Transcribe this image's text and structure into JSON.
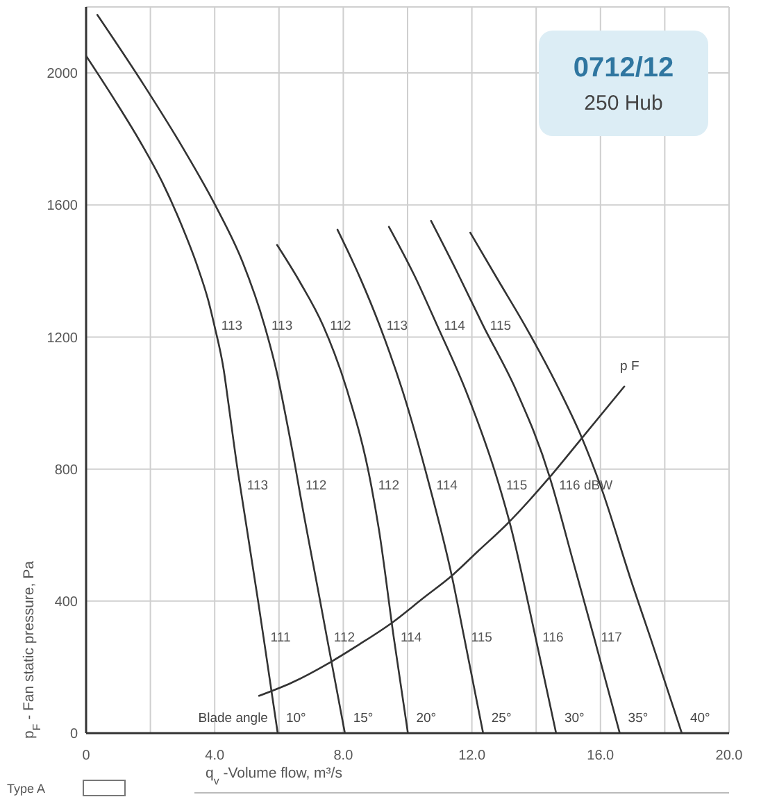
{
  "chart_data": {
    "type": "line",
    "title": "0712/12",
    "subtitle": "250 Hub",
    "xlabel": "q$_{v}$ -Volume flow, m³/s",
    "ylabel": "p$_{F}$ - Fan static pressure, Pa",
    "legend_title": "Blade angle",
    "xlim": [
      0,
      20
    ],
    "ylim": [
      0,
      2200
    ],
    "xticks": [
      0,
      {
        "value": 2,
        "label": null
      },
      {
        "value": 4,
        "label": "4.0"
      },
      {
        "value": 6,
        "label": null
      },
      {
        "value": 8,
        "label": "8.0"
      },
      {
        "value": 10,
        "label": null
      },
      {
        "value": 12,
        "label": "12.0"
      },
      {
        "value": 14,
        "label": null
      },
      {
        "value": 16,
        "label": "16.0"
      },
      {
        "value": 18,
        "label": null
      },
      {
        "value": 20,
        "label": "20.0"
      }
    ],
    "yticks": [
      0,
      400,
      800,
      1200,
      1600,
      2000
    ],
    "grid": true,
    "series": [
      {
        "name": "10°",
        "color": "#333333",
        "x": [
          0,
          0.89,
          1.68,
          2.38,
          2.96,
          3.46,
          3.8,
          3.99,
          4.28,
          4.43,
          4.71,
          4.79,
          5.35,
          5.52,
          5.96
        ],
        "values": [
          2052,
          1918,
          1792,
          1667,
          1541,
          1415,
          1311,
          1235,
          1101,
          997,
          800,
          750,
          400,
          290,
          0
        ]
      },
      {
        "name": "15°",
        "color": "#333333",
        "x": [
          0.35,
          1.82,
          2.98,
          4.03,
          4.86,
          5.55,
          5.93,
          6.22,
          6.52,
          6.61,
          7.28,
          7.49,
          8.05
        ],
        "values": [
          2176,
          1960,
          1778,
          1597,
          1429,
          1235,
          1094,
          955,
          800,
          750,
          400,
          290,
          0
        ]
      },
      {
        "name": "20°",
        "color": "#333333",
        "x": [
          5.94,
          6.66,
          7.37,
          8.12,
          8.87,
          9.11,
          9.57,
          10.01
        ],
        "values": [
          1479,
          1365,
          1235,
          1038,
          750,
          616,
          290,
          0
        ]
      },
      {
        "name": "25°",
        "color": "#333333",
        "x": [
          7.82,
          8.52,
          9.13,
          9.84,
          10.68,
          11.39,
          11.76,
          12.35
        ],
        "values": [
          1525,
          1380,
          1235,
          1038,
          750,
          470,
          290,
          0
        ]
      },
      {
        "name": "30°",
        "color": "#333333",
        "x": [
          9.42,
          10.22,
          10.92,
          11.81,
          12.85,
          13.2,
          13.98,
          14.62
        ],
        "values": [
          1534,
          1385,
          1235,
          1038,
          750,
          629,
          290,
          0
        ]
      },
      {
        "name": "35°",
        "color": "#333333",
        "x": [
          10.73,
          11.55,
          12.35,
          13.38,
          14.42,
          14.5,
          15.15,
          15.8,
          16.6
        ],
        "values": [
          1552,
          1395,
          1235,
          1038,
          776,
          750,
          520,
          290,
          0
        ]
      },
      {
        "name": "40°",
        "color": "#333333",
        "x": [
          11.95,
          12.8,
          13.65,
          14.73,
          15.42,
          16.0,
          17.0,
          17.55,
          18.53
        ],
        "values": [
          1516,
          1375,
          1235,
          1038,
          895,
          750,
          448,
          290,
          0
        ]
      },
      {
        "name": "p F",
        "color": "#333333",
        "x": [
          5.38,
          6.4,
          7.6,
          8.5,
          9.51,
          10.5,
          11.39,
          12.2,
          13.08,
          14.39,
          15.39,
          16.74
        ],
        "values": [
          113,
          153,
          215,
          269,
          334,
          410,
          478,
          552,
          632,
          772,
          890,
          1050
        ]
      }
    ],
    "annotations": [
      {
        "text": "113",
        "x": 3.99,
        "y": 1235
      },
      {
        "text": "113",
        "x": 5.55,
        "y": 1235
      },
      {
        "text": "112",
        "x": 7.37,
        "y": 1235
      },
      {
        "text": "113",
        "x": 9.13,
        "y": 1235
      },
      {
        "text": "114",
        "x": 10.92,
        "y": 1235
      },
      {
        "text": "115",
        "x": 12.35,
        "y": 1235
      },
      {
        "text": "113",
        "x": 4.79,
        "y": 750
      },
      {
        "text": "112",
        "x": 6.61,
        "y": 750
      },
      {
        "text": "112",
        "x": 8.87,
        "y": 750
      },
      {
        "text": "114",
        "x": 10.68,
        "y": 750
      },
      {
        "text": "115",
        "x": 12.85,
        "y": 750
      },
      {
        "text": "116 dBW",
        "x": 14.5,
        "y": 750
      },
      {
        "text": "111",
        "x": 5.52,
        "y": 290
      },
      {
        "text": "112",
        "x": 7.49,
        "y": 290
      },
      {
        "text": "114",
        "x": 9.57,
        "y": 290
      },
      {
        "text": "115",
        "x": 11.76,
        "y": 290
      },
      {
        "text": "116",
        "x": 13.98,
        "y": 290
      },
      {
        "text": "117",
        "x": 15.8,
        "y": 290
      },
      "Type A"
    ]
  }
}
